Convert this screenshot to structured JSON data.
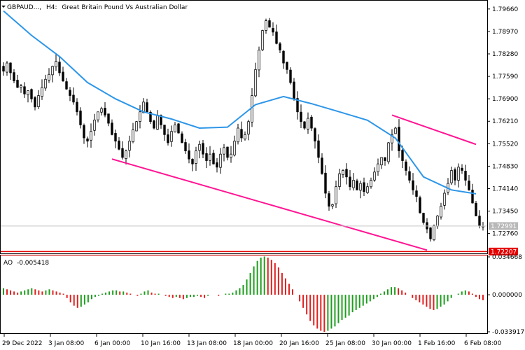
{
  "header": {
    "symbol": "GBPAUD...,",
    "timeframe": "H4:",
    "description": "Great Britain Pound Vs Australian Dollar"
  },
  "indicator": {
    "name": "AO",
    "value": "-0.005418",
    "scale_labels": [
      "0.034668",
      "0.000000",
      "-0.033917"
    ],
    "scale_values": [
      0.034668,
      0,
      -0.033917
    ]
  },
  "price_axis": {
    "labels": [
      "1.79660",
      "1.78970",
      "1.78280",
      "1.77590",
      "1.76900",
      "1.76210",
      "1.75520",
      "1.74830",
      "1.74140",
      "1.73450",
      "1.72760"
    ],
    "values": [
      1.7966,
      1.7897,
      1.7828,
      1.7759,
      1.769,
      1.7621,
      1.7552,
      1.7483,
      1.7414,
      1.7345,
      1.7276
    ],
    "current_price": "1.72991",
    "alert_price": "1.72207"
  },
  "time_axis": {
    "labels": [
      "29 Dec 2022",
      "3 Jan 08:00",
      "6 Jan 00:00",
      "10 Jan 16:00",
      "13 Jan 08:00",
      "18 Jan 00:00",
      "20 Jan 16:00",
      "25 Jan 08:00",
      "30 Jan 00:00",
      "1 Feb 16:00",
      "6 Feb 08:00"
    ]
  },
  "colors": {
    "candle": "#000000",
    "moving_average": "#2d96e8",
    "channel": "#ff1493",
    "alert_line": "#e60000",
    "ao_up": "#1e9e1e",
    "ao_down": "#e02020",
    "axis": "#000000",
    "price_badge": "#b8b8b8"
  },
  "chart_data": {
    "type": "candlestick",
    "y_range": [
      1.7215,
      1.7985
    ],
    "close": [
      1.7775,
      1.78,
      1.777,
      1.7745,
      1.7725,
      1.773,
      1.7705,
      1.7715,
      1.769,
      1.7665,
      1.77,
      1.7725,
      1.775,
      1.7765,
      1.779,
      1.7805,
      1.777,
      1.7745,
      1.772,
      1.77,
      1.768,
      1.765,
      1.761,
      1.757,
      1.756,
      1.759,
      1.7625,
      1.765,
      1.766,
      1.764,
      1.7615,
      1.758,
      1.756,
      1.7535,
      1.751,
      1.753,
      1.756,
      1.7595,
      1.762,
      1.765,
      1.768,
      1.765,
      1.762,
      1.76,
      1.764,
      1.761,
      1.758,
      1.7555,
      1.759,
      1.761,
      1.7585,
      1.7555,
      1.753,
      1.7505,
      1.749,
      1.753,
      1.755,
      1.752,
      1.75,
      1.752,
      1.749,
      1.748,
      1.752,
      1.754,
      1.751,
      1.752,
      1.756,
      1.76,
      1.757,
      1.758,
      1.762,
      1.77,
      1.778,
      1.784,
      1.79,
      1.793,
      1.791,
      1.7895,
      1.786,
      1.784,
      1.78,
      1.778,
      1.774,
      1.769,
      1.765,
      1.762,
      1.76,
      1.763,
      1.76,
      1.756,
      1.751,
      1.746,
      1.74,
      1.736,
      1.7365,
      1.742,
      1.746,
      1.747,
      1.745,
      1.742,
      1.744,
      1.741,
      1.743,
      1.7405,
      1.742,
      1.744,
      1.7465,
      1.749,
      1.751,
      1.75,
      1.7555,
      1.758,
      1.76,
      1.753,
      1.75,
      1.747,
      1.744,
      1.741,
      1.739,
      1.734,
      1.731,
      1.729,
      1.726,
      1.73,
      1.733,
      1.736,
      1.74,
      1.743,
      1.747,
      1.744,
      1.748,
      1.747,
      1.744,
      1.741,
      1.737,
      1.733,
      1.73,
      1.7299
    ],
    "moving_average": {
      "name": "",
      "x": [
        0,
        8,
        16,
        24,
        32,
        40,
        48,
        56,
        64,
        72,
        80,
        88,
        96,
        104,
        112,
        120,
        128,
        135
      ],
      "values": [
        1.796,
        1.7885,
        1.782,
        1.774,
        1.769,
        1.765,
        1.7628,
        1.76,
        1.7603,
        1.7672,
        1.7697,
        1.7675,
        1.765,
        1.7624,
        1.7569,
        1.745,
        1.741,
        1.7398
      ]
    },
    "channel_lines": [
      {
        "from": [
          31,
          1.7505
        ],
        "to": [
          121,
          1.7225
        ]
      },
      {
        "from": [
          111,
          1.764
        ],
        "to": [
          135,
          1.755
        ]
      }
    ],
    "horizontal_line": 1.72207,
    "ao_values": [
      0.006,
      0.005,
      0.004,
      0.003,
      0.002,
      0.003,
      0.004,
      0.005,
      0.006,
      0.005,
      0.004,
      0.003,
      0.004,
      0.005,
      0.004,
      0.003,
      0.002,
      0.001,
      -0.003,
      -0.007,
      -0.01,
      -0.012,
      -0.011,
      -0.009,
      -0.007,
      -0.004,
      -0.002,
      -0.001,
      0.001,
      0.002,
      0.003,
      0.004,
      0.004,
      0.003,
      0.003,
      0.002,
      0.001,
      0.0,
      -0.001,
      0.001,
      0.003,
      0.004,
      0.002,
      0.001,
      0.001,
      0.0,
      -0.001,
      -0.002,
      -0.003,
      -0.002,
      -0.003,
      -0.004,
      -0.003,
      -0.002,
      -0.002,
      -0.001,
      -0.002,
      -0.003,
      -0.001,
      0.0,
      0.0,
      -0.001,
      0.0,
      0.001,
      0.001,
      0.002,
      0.004,
      0.006,
      0.009,
      0.014,
      0.02,
      0.026,
      0.031,
      0.034,
      0.035,
      0.034,
      0.032,
      0.029,
      0.025,
      0.02,
      0.015,
      0.01,
      0.005,
      0.0,
      -0.006,
      -0.012,
      -0.018,
      -0.024,
      -0.028,
      -0.031,
      -0.033,
      -0.034,
      -0.033,
      -0.031,
      -0.029,
      -0.026,
      -0.023,
      -0.021,
      -0.019,
      -0.016,
      -0.014,
      -0.012,
      -0.01,
      -0.008,
      -0.006,
      -0.004,
      -0.002,
      0.001,
      0.003,
      0.005,
      0.007,
      0.007,
      0.006,
      0.004,
      0.002,
      0.0,
      -0.003,
      -0.005,
      -0.007,
      -0.009,
      -0.011,
      -0.013,
      -0.014,
      -0.013,
      -0.011,
      -0.009,
      -0.006,
      -0.003,
      0.0,
      0.001,
      0.003,
      0.004,
      0.003,
      0.001,
      -0.002,
      -0.004,
      -0.005
    ]
  }
}
